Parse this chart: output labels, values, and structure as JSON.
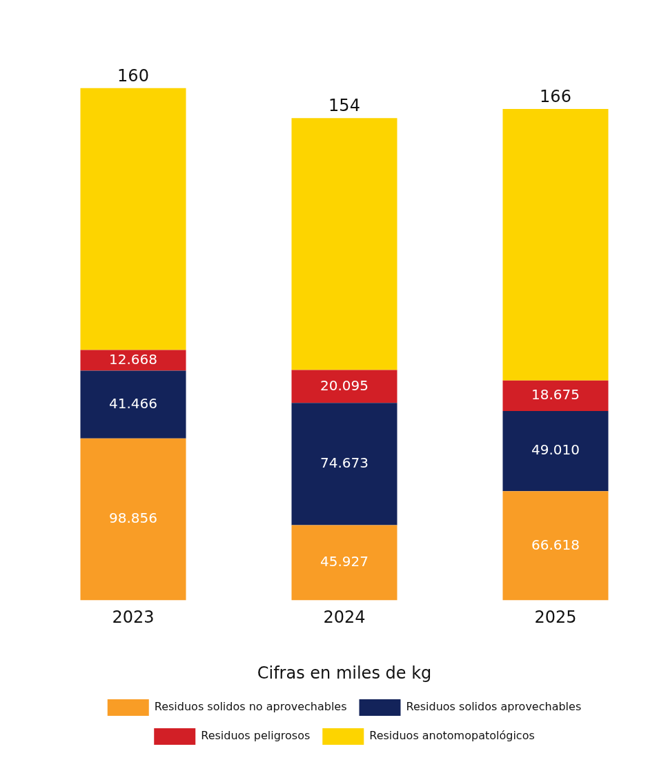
{
  "chart_data": {
    "type": "bar",
    "stacked": true,
    "categories": [
      "2023",
      "2024",
      "2025"
    ],
    "series": [
      {
        "name": "Residuos solidos no aprovechables",
        "color": "#f99d26",
        "values": [
          98.856,
          45.927,
          66.618
        ],
        "value_labels": [
          "98.856",
          "45.927",
          "66.618"
        ]
      },
      {
        "name": "Residuos solidos aprovechables",
        "color": "#13235a",
        "values": [
          41.466,
          74.673,
          49.01
        ],
        "value_labels": [
          "41.466",
          "74.673",
          "49.010"
        ]
      },
      {
        "name": "Residuos peligrosos",
        "color": "#d21f26",
        "values": [
          12.668,
          20.095,
          18.675
        ],
        "value_labels": [
          "12.668",
          "20.095",
          "18.675"
        ]
      },
      {
        "name": "Residuos anotomopatológicos",
        "color": "#fdd400",
        "values": [
          160,
          154,
          166
        ],
        "value_labels": [
          "160",
          "154",
          "166"
        ]
      }
    ],
    "xlabel": "Cifras en miles de kg",
    "tick_labels": "x",
    "grid": false,
    "legend": "bottom"
  }
}
